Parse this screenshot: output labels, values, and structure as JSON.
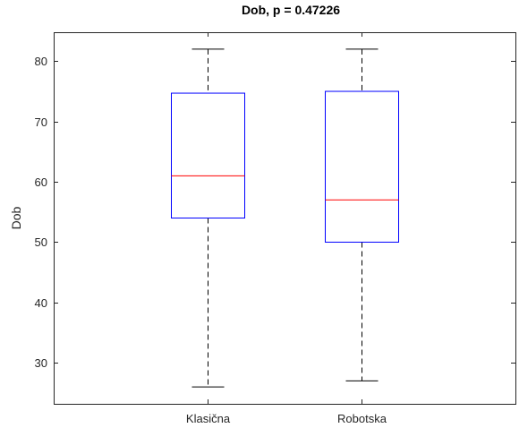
{
  "chart_data": {
    "type": "boxplot",
    "title": "Dob, p = 0.47226",
    "xlabel": "",
    "ylabel": "Dob",
    "ylim": [
      23.2,
      84.8
    ],
    "yticks": [
      30,
      40,
      50,
      60,
      70,
      80
    ],
    "ytick_labels": [
      "30",
      "40",
      "50",
      "60",
      "70",
      "80"
    ],
    "grid": false,
    "colors": {
      "box": "#0000ff",
      "median": "#ff0000",
      "whisker": "#000000",
      "axis": "#262626"
    },
    "categories": [
      "Klasična",
      "Robotska"
    ],
    "boxes": [
      {
        "category": "Klasična",
        "min": 26,
        "q1": 54,
        "median": 61,
        "q3": 74.7,
        "max": 82
      },
      {
        "category": "Robotska",
        "min": 27,
        "q1": 50,
        "median": 57,
        "q3": 75,
        "max": 82
      }
    ]
  }
}
